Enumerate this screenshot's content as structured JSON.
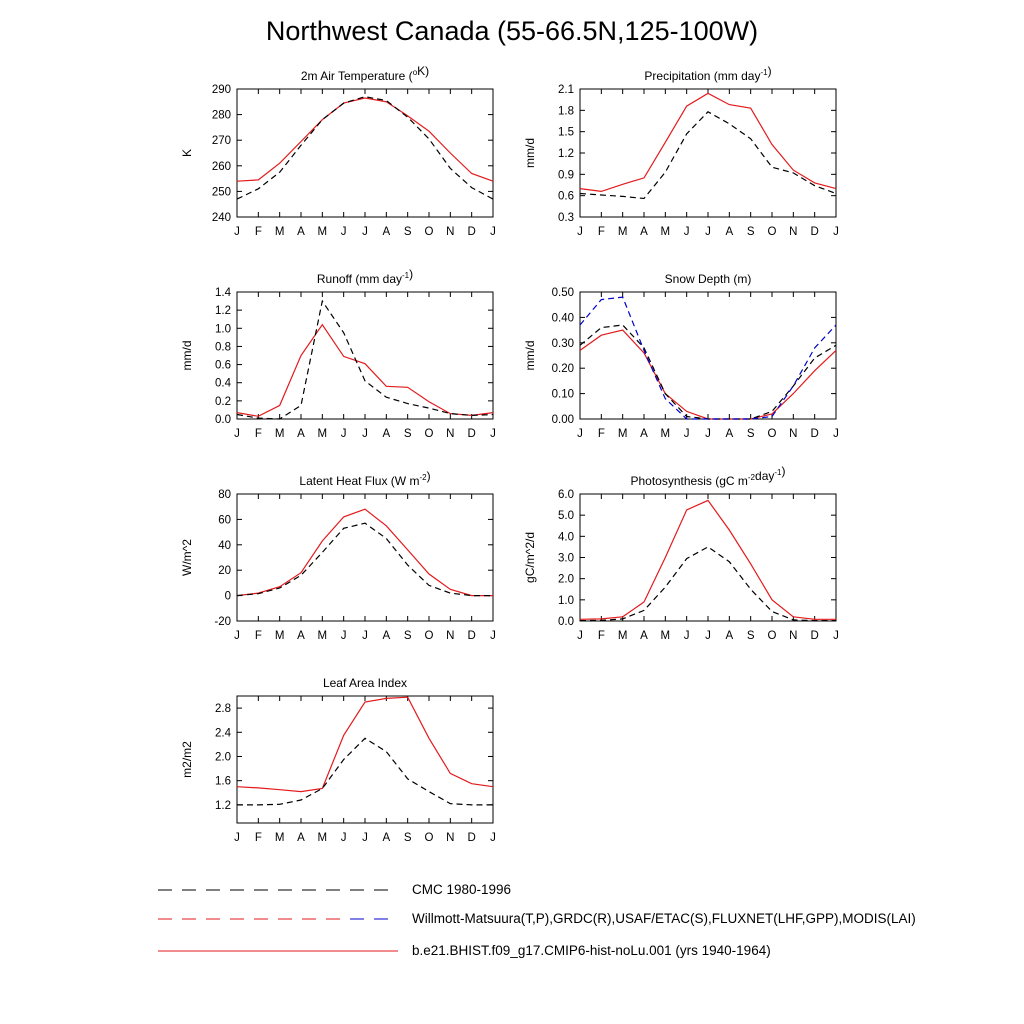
{
  "title": "Northwest Canada (55-66.5N,125-100W)",
  "months": [
    "J",
    "F",
    "M",
    "A",
    "M",
    "J",
    "J",
    "A",
    "S",
    "O",
    "N",
    "D",
    "J"
  ],
  "colors": {
    "model": "#e31a1c",
    "cmc": "#000000",
    "obs": "#0000cc"
  },
  "legend": [
    {
      "label": "CMC 1980-1996",
      "style": "dash",
      "colors": [
        "#000000"
      ]
    },
    {
      "label": "Willmott-Matsuura(T,P),GRDC(R),USAF/ETAC(S),FLUXNET(LHF,GPP),MODIS(LAI)",
      "style": "dash",
      "colors": [
        "#000000",
        "#e31a1c",
        "#0000cc"
      ]
    },
    {
      "label": "b.e21.BHIST.f09_g17.CMIP6-hist-noLu.001 (yrs 1940-1964)",
      "style": "solid",
      "colors": [
        "#e31a1c"
      ]
    }
  ],
  "chart_data": [
    {
      "type": "line",
      "title": "2m Air Temperature (",
      "title_sup": "o",
      "title_after": "K)",
      "ylabel": "K",
      "ylim": [
        240,
        290
      ],
      "yticks": [
        "240",
        "250",
        "260",
        "270",
        "280",
        "290"
      ],
      "series": [
        {
          "role": "model",
          "style": "solid",
          "color": "#e31a1c",
          "values": [
            254,
            254.5,
            261,
            269.5,
            278,
            284.5,
            286.5,
            285,
            279.5,
            273.5,
            265,
            257,
            254
          ]
        },
        {
          "role": "obs",
          "style": "dash",
          "color": "#000000",
          "values": [
            247,
            251,
            257.5,
            268,
            278,
            284.5,
            287,
            285.5,
            279,
            270.5,
            259,
            251.5,
            247
          ]
        }
      ]
    },
    {
      "type": "line",
      "title": "Precipitation (mm day",
      "title_sup": "-1",
      "title_after": ")",
      "ylabel": "mm/d",
      "ylim": [
        0.3,
        2.1
      ],
      "yticks": [
        "0.3",
        "0.6",
        "0.9",
        "1.2",
        "1.5",
        "1.8",
        "2.1"
      ],
      "series": [
        {
          "role": "model",
          "style": "solid",
          "color": "#e31a1c",
          "values": [
            0.7,
            0.66,
            0.76,
            0.85,
            1.35,
            1.86,
            2.04,
            1.88,
            1.83,
            1.32,
            0.96,
            0.78,
            0.7
          ]
        },
        {
          "role": "obs",
          "style": "dash",
          "color": "#000000",
          "values": [
            0.63,
            0.61,
            0.59,
            0.56,
            0.93,
            1.47,
            1.78,
            1.61,
            1.4,
            1.0,
            0.92,
            0.74,
            0.63
          ]
        }
      ]
    },
    {
      "type": "line",
      "title": "Runoff (mm day",
      "title_sup": "-1",
      "title_after": ")",
      "ylabel": "mm/d",
      "ylim": [
        0,
        1.4
      ],
      "yticks": [
        "0.0",
        "0.2",
        "0.4",
        "0.6",
        "0.8",
        "1.0",
        "1.2",
        "1.4"
      ],
      "series": [
        {
          "role": "model",
          "style": "solid",
          "color": "#e31a1c",
          "values": [
            0.07,
            0.03,
            0.15,
            0.7,
            1.04,
            0.69,
            0.61,
            0.36,
            0.35,
            0.19,
            0.06,
            0.04,
            0.07
          ]
        },
        {
          "role": "obs",
          "style": "dash",
          "color": "#000000",
          "values": [
            0.05,
            0.01,
            0.0,
            0.15,
            1.3,
            0.95,
            0.42,
            0.24,
            0.17,
            0.12,
            0.06,
            0.04,
            0.05
          ]
        }
      ]
    },
    {
      "type": "line",
      "title": "Snow Depth (m)",
      "title_sup": "",
      "title_after": "",
      "ylabel": "mm/d",
      "ylim": [
        0,
        0.5
      ],
      "yticks": [
        "0.00",
        "0.10",
        "0.20",
        "0.30",
        "0.40",
        "0.50"
      ],
      "series": [
        {
          "role": "model",
          "style": "solid",
          "color": "#e31a1c",
          "values": [
            0.27,
            0.33,
            0.35,
            0.26,
            0.1,
            0.03,
            0.0,
            0.0,
            0.0,
            0.02,
            0.1,
            0.19,
            0.27
          ]
        },
        {
          "role": "cmc",
          "style": "dash",
          "color": "#000000",
          "values": [
            0.29,
            0.36,
            0.37,
            0.28,
            0.1,
            0.01,
            0.0,
            0.0,
            0.0,
            0.03,
            0.13,
            0.24,
            0.29
          ]
        },
        {
          "role": "obs",
          "style": "dash",
          "color": "#0000cc",
          "values": [
            0.37,
            0.47,
            0.48,
            0.27,
            0.08,
            0.0,
            0.0,
            0.0,
            0.0,
            0.01,
            0.13,
            0.28,
            0.37
          ]
        }
      ]
    },
    {
      "type": "line",
      "title": "Latent Heat Flux (W m",
      "title_sup": "-2",
      "title_after": ")",
      "ylabel": "W/m^2",
      "ylim": [
        -20,
        80
      ],
      "yticks": [
        "-20",
        "0",
        "20",
        "40",
        "60",
        "80"
      ],
      "series": [
        {
          "role": "model",
          "style": "solid",
          "color": "#e31a1c",
          "values": [
            0,
            2,
            7,
            18,
            43,
            62,
            68,
            55,
            36,
            17,
            5,
            0,
            0
          ]
        },
        {
          "role": "obs",
          "style": "dash",
          "color": "#000000",
          "values": [
            0,
            1.5,
            6,
            16,
            34,
            53,
            57,
            45,
            24,
            8,
            2,
            0,
            0
          ]
        }
      ]
    },
    {
      "type": "line",
      "title": "Photosynthesis (gC m",
      "title_sup": "-2",
      "title_after": "day",
      "title_sup2": "-1",
      "title_after2": ")",
      "ylabel": "gC/m^2/d",
      "ylim": [
        0,
        6
      ],
      "yticks": [
        "0.0",
        "1.0",
        "2.0",
        "3.0",
        "4.0",
        "5.0",
        "6.0"
      ],
      "series": [
        {
          "role": "model",
          "style": "solid",
          "color": "#e31a1c",
          "values": [
            0.08,
            0.1,
            0.2,
            0.9,
            3.0,
            5.25,
            5.7,
            4.3,
            2.7,
            1.0,
            0.2,
            0.08,
            0.08
          ]
        },
        {
          "role": "obs",
          "style": "dash",
          "color": "#000000",
          "values": [
            0.02,
            0.03,
            0.1,
            0.5,
            1.6,
            2.95,
            3.5,
            2.8,
            1.5,
            0.45,
            0.05,
            0.02,
            0.02
          ]
        }
      ]
    },
    {
      "type": "line",
      "title": "Leaf Area Index",
      "title_sup": "",
      "title_after": "",
      "ylabel": "m2/m2",
      "ylim": [
        0.9,
        3.0
      ],
      "yticks": [
        "1.2",
        "1.6",
        "2.0",
        "2.4",
        "2.8"
      ],
      "series": [
        {
          "role": "model",
          "style": "solid",
          "color": "#e31a1c",
          "values": [
            1.5,
            1.48,
            1.45,
            1.42,
            1.47,
            2.35,
            2.9,
            2.96,
            2.98,
            2.3,
            1.72,
            1.55,
            1.5
          ]
        },
        {
          "role": "obs",
          "style": "dash",
          "color": "#000000",
          "values": [
            1.2,
            1.2,
            1.21,
            1.28,
            1.47,
            1.95,
            2.3,
            2.08,
            1.63,
            1.42,
            1.22,
            1.2,
            1.2
          ]
        }
      ]
    }
  ]
}
